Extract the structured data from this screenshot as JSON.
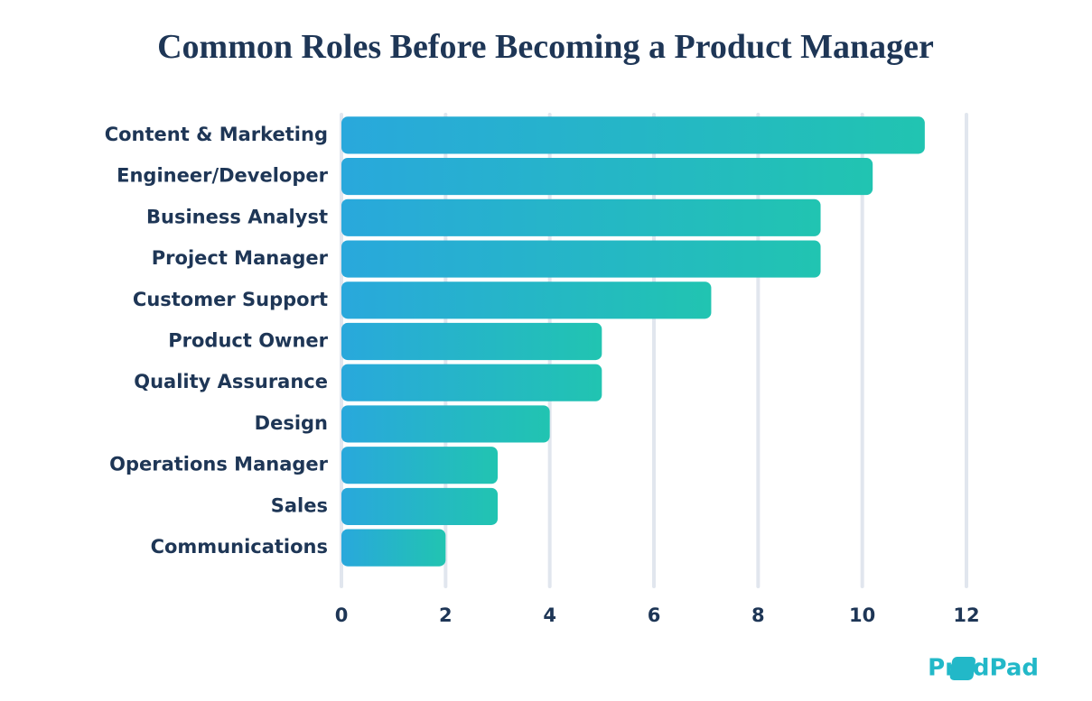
{
  "chart_data": {
    "type": "barh",
    "title": "Common Roles Before Becoming a Product Manager",
    "categories": [
      "Content & Marketing",
      "Engineer/Developer",
      "Business Analyst",
      "Project Manager",
      "Customer Support",
      "Product Owner",
      "Quality Assurance",
      "Design",
      "Operations Manager",
      "Sales",
      "Communications"
    ],
    "values": [
      11.2,
      10.2,
      9.2,
      9.2,
      7.1,
      5,
      5,
      4,
      3,
      3,
      2
    ],
    "colors": [
      "#29a8dc",
      "#21c4b1"
    ],
    "xlim": [
      0,
      12
    ],
    "xticks": [
      0,
      2,
      4,
      6,
      8,
      10,
      12
    ],
    "grid": true
  },
  "brand": "ProdPad"
}
